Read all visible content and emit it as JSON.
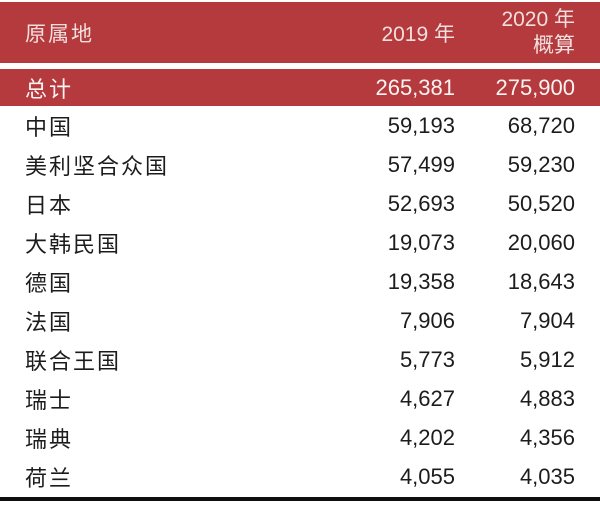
{
  "header": {
    "origin": "原属地",
    "y2019": "2019 年",
    "y2020_line1": "2020 年",
    "y2020_line2": "概算"
  },
  "total": {
    "label": "总计",
    "v2019": "265,381",
    "v2020": "275,900"
  },
  "rows": [
    {
      "label": "中国",
      "v2019": "59,193",
      "v2020": "68,720"
    },
    {
      "label": "美利坚合众国",
      "v2019": "57,499",
      "v2020": "59,230"
    },
    {
      "label": "日本",
      "v2019": "52,693",
      "v2020": "50,520"
    },
    {
      "label": "大韩民国",
      "v2019": "19,073",
      "v2020": "20,060"
    },
    {
      "label": "德国",
      "v2019": "19,358",
      "v2020": "18,643"
    },
    {
      "label": "法国",
      "v2019": "7,906",
      "v2020": "7,904"
    },
    {
      "label": "联合王国",
      "v2019": "5,773",
      "v2020": "5,912"
    },
    {
      "label": "瑞士",
      "v2019": "4,627",
      "v2020": "4,883"
    },
    {
      "label": "瑞典",
      "v2019": "4,202",
      "v2020": "4,356"
    },
    {
      "label": "荷兰",
      "v2019": "4,055",
      "v2020": "4,035"
    }
  ],
  "colors": {
    "header_bg": "#b43a3e",
    "header_text": "#f2dfde",
    "total_row_bg": "#b43a3e",
    "total_row_text": "#fbf3f2",
    "body_text": "#1c1c1c",
    "bottom_rule": "#0e0e0e"
  },
  "chart_data": {
    "type": "table",
    "title": "",
    "row_header": "原属地",
    "columns": [
      "2019 年",
      "2020 年 概算"
    ],
    "categories": [
      "总计",
      "中国",
      "美利坚合众国",
      "日本",
      "大韩民国",
      "德国",
      "法国",
      "联合王国",
      "瑞士",
      "瑞典",
      "荷兰"
    ],
    "series": [
      {
        "name": "2019 年",
        "values": [
          265381,
          59193,
          57499,
          52693,
          19073,
          19358,
          7906,
          5773,
          4627,
          4202,
          4055
        ]
      },
      {
        "name": "2020 年 概算",
        "values": [
          275900,
          68720,
          59230,
          50520,
          20060,
          18643,
          7904,
          5912,
          4883,
          4356,
          4035
        ]
      }
    ]
  }
}
